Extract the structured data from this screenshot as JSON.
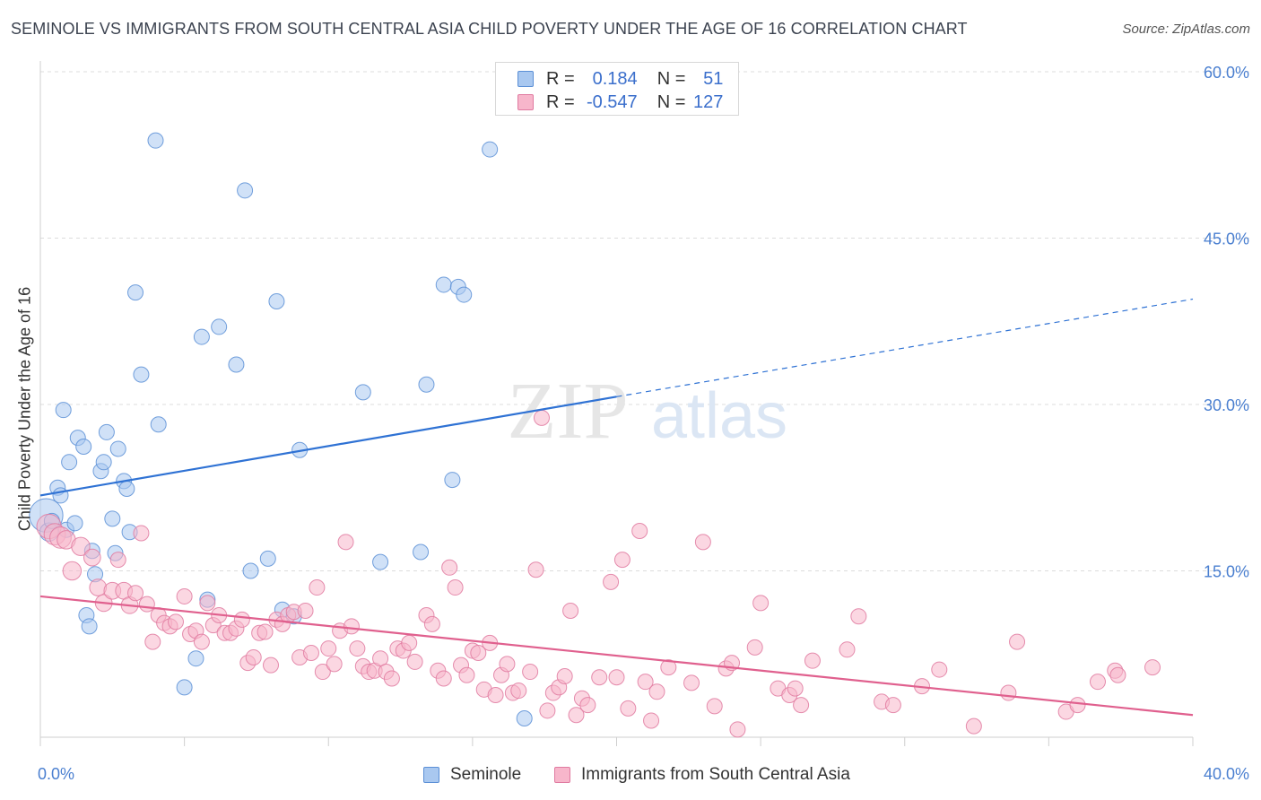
{
  "header": {
    "title": "SEMINOLE VS IMMIGRANTS FROM SOUTH CENTRAL ASIA CHILD POVERTY UNDER THE AGE OF 16 CORRELATION CHART",
    "source": "Source: ZipAtlas.com"
  },
  "watermark": {
    "zip": "ZIP",
    "atlas": "atlas"
  },
  "legend": {
    "r_label": "R =",
    "n_label": "N =",
    "series": [
      {
        "name": "Seminole",
        "r": "0.184",
        "n": "51",
        "fill": "#a9c8f0",
        "stroke": "#5b8fd6"
      },
      {
        "name": "Immigrants from South Central Asia",
        "r": "-0.547",
        "n": "127",
        "fill": "#f7b6cb",
        "stroke": "#e07aa0"
      }
    ]
  },
  "chart_data": {
    "type": "scatter",
    "title": "SEMINOLE VS IMMIGRANTS FROM SOUTH CENTRAL ASIA CHILD POVERTY UNDER THE AGE OF 16 CORRELATION CHART",
    "xlabel": "",
    "ylabel": "Child Poverty Under the Age of 16",
    "xlim": [
      0,
      40
    ],
    "ylim": [
      0,
      60
    ],
    "x_tick_labels": [
      {
        "value": 0,
        "label": "0.0%"
      },
      {
        "value": 40,
        "label": "40.0%"
      }
    ],
    "y_tick_labels": [
      {
        "value": 15,
        "label": "15.0%"
      },
      {
        "value": 30,
        "label": "30.0%"
      },
      {
        "value": 45,
        "label": "45.0%"
      },
      {
        "value": 60,
        "label": "60.0%"
      }
    ],
    "grid": true,
    "series": [
      {
        "name": "Seminole",
        "color": "#5b8fd6",
        "fill": "#a9c8f0",
        "trend": {
          "x0": 0,
          "y0": 21.8,
          "x1": 20,
          "y1": 30.7,
          "dashed_to_x": 40,
          "dashed_to_y": 39.5,
          "color": "#2f72d4"
        },
        "points": [
          [
            0.2,
            20.0,
            22
          ],
          [
            0.3,
            18.5,
            12
          ],
          [
            0.4,
            19.5,
            10
          ],
          [
            0.6,
            22.5,
            10
          ],
          [
            0.7,
            21.8,
            10
          ],
          [
            0.8,
            29.5,
            10
          ],
          [
            0.9,
            18.7,
            10
          ],
          [
            1.0,
            24.8,
            10
          ],
          [
            1.2,
            19.3,
            10
          ],
          [
            1.3,
            27.0,
            10
          ],
          [
            1.5,
            26.2,
            10
          ],
          [
            1.6,
            11.0,
            10
          ],
          [
            1.7,
            10.0,
            10
          ],
          [
            1.8,
            16.8,
            10
          ],
          [
            1.9,
            14.7,
            10
          ],
          [
            2.1,
            24.0,
            10
          ],
          [
            2.2,
            24.8,
            10
          ],
          [
            2.3,
            27.5,
            10
          ],
          [
            2.5,
            19.7,
            10
          ],
          [
            2.6,
            16.6,
            10
          ],
          [
            2.7,
            26.0,
            10
          ],
          [
            2.9,
            23.1,
            10
          ],
          [
            3.0,
            22.4,
            10
          ],
          [
            3.1,
            18.5,
            10
          ],
          [
            3.3,
            40.1,
            10
          ],
          [
            3.5,
            32.7,
            10
          ],
          [
            4.0,
            53.8,
            10
          ],
          [
            4.1,
            28.2,
            10
          ],
          [
            5.0,
            4.5,
            10
          ],
          [
            5.4,
            7.1,
            10
          ],
          [
            5.6,
            36.1,
            10
          ],
          [
            5.8,
            12.4,
            10
          ],
          [
            6.2,
            37.0,
            10
          ],
          [
            6.8,
            33.6,
            10
          ],
          [
            7.1,
            49.3,
            10
          ],
          [
            7.3,
            15.0,
            10
          ],
          [
            7.9,
            16.1,
            10
          ],
          [
            8.2,
            39.3,
            10
          ],
          [
            8.4,
            11.5,
            10
          ],
          [
            8.8,
            10.9,
            10
          ],
          [
            9.0,
            25.9,
            10
          ],
          [
            11.2,
            31.1,
            10
          ],
          [
            11.8,
            15.8,
            10
          ],
          [
            13.2,
            16.7,
            10
          ],
          [
            13.4,
            31.8,
            10
          ],
          [
            14.0,
            40.8,
            10
          ],
          [
            14.3,
            23.2,
            10
          ],
          [
            14.5,
            40.6,
            10
          ],
          [
            14.7,
            39.9,
            10
          ],
          [
            15.6,
            53.0,
            10
          ],
          [
            16.8,
            1.7,
            10
          ]
        ]
      },
      {
        "name": "Immigrants from South Central Asia",
        "color": "#e07aa0",
        "fill": "#f7b6cb",
        "trend": {
          "x0": 0,
          "y0": 12.7,
          "x1": 40,
          "y1": 2.0,
          "color": "#e0608e"
        },
        "points": [
          [
            0.3,
            19.0,
            16
          ],
          [
            0.5,
            18.3,
            14
          ],
          [
            0.7,
            18.0,
            14
          ],
          [
            0.9,
            17.8,
            12
          ],
          [
            1.1,
            15.0,
            12
          ],
          [
            1.4,
            17.2,
            12
          ],
          [
            1.8,
            16.2,
            11
          ],
          [
            2.0,
            13.5,
            11
          ],
          [
            2.2,
            12.1,
            11
          ],
          [
            2.5,
            13.2,
            11
          ],
          [
            2.7,
            16.0,
            10
          ],
          [
            2.9,
            13.2,
            11
          ],
          [
            3.1,
            11.9,
            11
          ],
          [
            3.3,
            13.0,
            10
          ],
          [
            3.5,
            18.4,
            10
          ],
          [
            3.7,
            12.0,
            10
          ],
          [
            3.9,
            8.6,
            10
          ],
          [
            4.1,
            11.0,
            10
          ],
          [
            4.3,
            10.3,
            10
          ],
          [
            4.5,
            10.0,
            10
          ],
          [
            4.7,
            10.4,
            10
          ],
          [
            5.0,
            12.7,
            10
          ],
          [
            5.2,
            9.3,
            10
          ],
          [
            5.4,
            9.6,
            10
          ],
          [
            5.6,
            8.6,
            10
          ],
          [
            5.8,
            12.1,
            10
          ],
          [
            6.0,
            10.1,
            10
          ],
          [
            6.2,
            11.0,
            10
          ],
          [
            6.4,
            9.4,
            10
          ],
          [
            6.6,
            9.4,
            10
          ],
          [
            6.8,
            9.8,
            10
          ],
          [
            7.0,
            10.6,
            10
          ],
          [
            7.2,
            6.7,
            10
          ],
          [
            7.4,
            7.2,
            10
          ],
          [
            7.6,
            9.4,
            10
          ],
          [
            7.8,
            9.5,
            10
          ],
          [
            8.0,
            6.5,
            10
          ],
          [
            8.2,
            10.6,
            10
          ],
          [
            8.4,
            10.2,
            10
          ],
          [
            8.6,
            11.0,
            10
          ],
          [
            8.8,
            11.3,
            10
          ],
          [
            9.0,
            7.2,
            10
          ],
          [
            9.2,
            11.4,
            10
          ],
          [
            9.4,
            7.6,
            10
          ],
          [
            9.6,
            13.5,
            10
          ],
          [
            9.8,
            5.9,
            10
          ],
          [
            10.0,
            8.0,
            10
          ],
          [
            10.2,
            6.6,
            10
          ],
          [
            10.4,
            9.6,
            10
          ],
          [
            10.6,
            17.6,
            10
          ],
          [
            10.8,
            10.0,
            10
          ],
          [
            11.0,
            8.0,
            10
          ],
          [
            11.2,
            6.4,
            10
          ],
          [
            11.4,
            5.9,
            10
          ],
          [
            11.6,
            6.0,
            10
          ],
          [
            11.8,
            7.1,
            10
          ],
          [
            12.0,
            5.9,
            10
          ],
          [
            12.2,
            5.3,
            10
          ],
          [
            12.4,
            8.0,
            10
          ],
          [
            12.6,
            7.8,
            10
          ],
          [
            12.8,
            8.5,
            10
          ],
          [
            13.0,
            6.8,
            10
          ],
          [
            13.4,
            11.0,
            10
          ],
          [
            13.6,
            10.2,
            10
          ],
          [
            13.8,
            6.0,
            10
          ],
          [
            14.0,
            5.3,
            10
          ],
          [
            14.2,
            15.3,
            10
          ],
          [
            14.4,
            13.5,
            10
          ],
          [
            14.6,
            6.5,
            10
          ],
          [
            14.8,
            5.6,
            10
          ],
          [
            15.0,
            7.8,
            10
          ],
          [
            15.2,
            7.6,
            10
          ],
          [
            15.4,
            4.3,
            10
          ],
          [
            15.6,
            8.5,
            10
          ],
          [
            15.8,
            3.8,
            10
          ],
          [
            16.0,
            5.6,
            10
          ],
          [
            16.2,
            6.6,
            10
          ],
          [
            16.4,
            4.0,
            10
          ],
          [
            16.6,
            4.2,
            10
          ],
          [
            17.0,
            5.9,
            10
          ],
          [
            17.2,
            15.1,
            10
          ],
          [
            17.4,
            28.8,
            10
          ],
          [
            17.6,
            2.4,
            10
          ],
          [
            17.8,
            4.0,
            10
          ],
          [
            18.0,
            4.5,
            10
          ],
          [
            18.2,
            5.5,
            10
          ],
          [
            18.4,
            11.4,
            10
          ],
          [
            18.6,
            2.0,
            10
          ],
          [
            18.8,
            3.5,
            10
          ],
          [
            19.0,
            2.9,
            10
          ],
          [
            19.4,
            5.4,
            10
          ],
          [
            19.8,
            14.0,
            10
          ],
          [
            20.0,
            5.4,
            10
          ],
          [
            20.2,
            16.0,
            10
          ],
          [
            20.4,
            2.6,
            10
          ],
          [
            20.8,
            18.6,
            10
          ],
          [
            21.0,
            5.0,
            10
          ],
          [
            21.2,
            1.5,
            10
          ],
          [
            21.4,
            4.1,
            10
          ],
          [
            21.8,
            6.3,
            10
          ],
          [
            22.6,
            4.9,
            10
          ],
          [
            23.0,
            17.6,
            10
          ],
          [
            23.4,
            2.8,
            10
          ],
          [
            23.8,
            6.2,
            10
          ],
          [
            24.0,
            6.7,
            10
          ],
          [
            24.2,
            0.7,
            10
          ],
          [
            24.8,
            8.1,
            10
          ],
          [
            25.0,
            12.1,
            10
          ],
          [
            25.6,
            4.4,
            10
          ],
          [
            26.0,
            3.8,
            10
          ],
          [
            26.2,
            4.4,
            10
          ],
          [
            26.4,
            2.9,
            10
          ],
          [
            26.8,
            6.9,
            10
          ],
          [
            28.0,
            7.9,
            10
          ],
          [
            28.4,
            10.9,
            10
          ],
          [
            29.2,
            3.2,
            10
          ],
          [
            29.6,
            2.9,
            10
          ],
          [
            30.6,
            4.6,
            10
          ],
          [
            31.2,
            6.1,
            10
          ],
          [
            32.4,
            1.0,
            10
          ],
          [
            33.6,
            4.0,
            10
          ],
          [
            33.9,
            8.6,
            10
          ],
          [
            35.6,
            2.3,
            10
          ],
          [
            36.0,
            2.9,
            10
          ],
          [
            36.7,
            5.0,
            10
          ],
          [
            37.3,
            6.0,
            10
          ],
          [
            37.4,
            5.6,
            10
          ],
          [
            38.6,
            6.3,
            10
          ]
        ]
      }
    ]
  }
}
